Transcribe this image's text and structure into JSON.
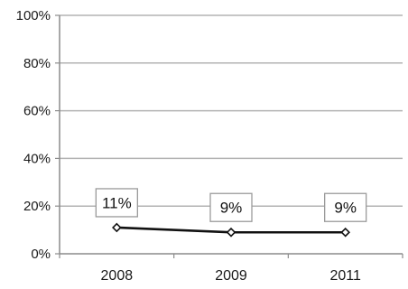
{
  "chart_data": {
    "type": "line",
    "title": "",
    "xlabel": "",
    "ylabel": "",
    "categories": [
      "2008",
      "2009",
      "2011"
    ],
    "series": [
      {
        "values": [
          11,
          9,
          9
        ],
        "data_labels": [
          "11%",
          "9%",
          "9%"
        ],
        "color": "#111111",
        "marker": "diamond"
      }
    ],
    "ylim": [
      0,
      100
    ],
    "y_ticks": [
      0,
      20,
      40,
      60,
      80,
      100
    ],
    "y_tick_labels": [
      "0%",
      "20%",
      "40%",
      "60%",
      "80%",
      "100%"
    ],
    "grid": true,
    "legend": "none"
  }
}
